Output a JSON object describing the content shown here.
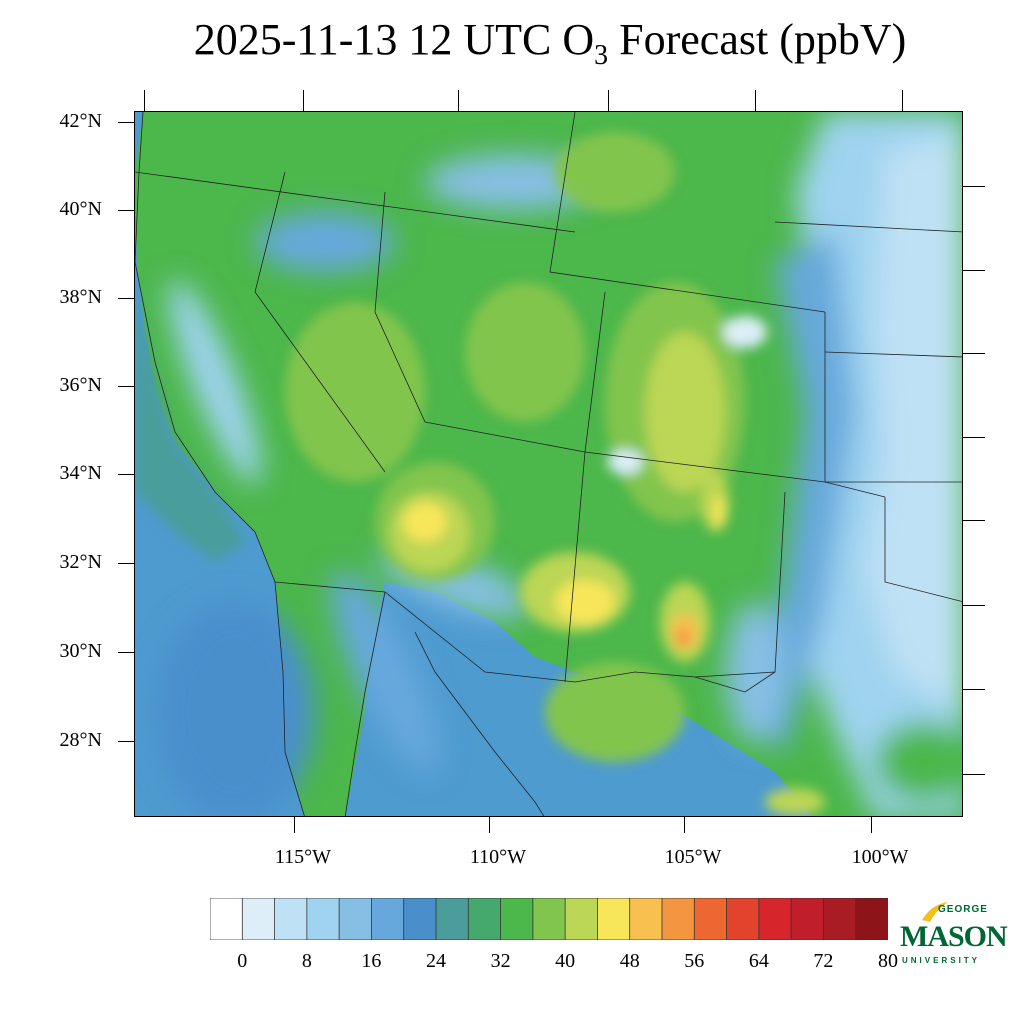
{
  "title": {
    "prefix": "2025-11-13 12 UTC O",
    "subscript": "3",
    "suffix": " Forecast (ppbV)"
  },
  "map": {
    "lat_labels": [
      "42°N",
      "40°N",
      "38°N",
      "36°N",
      "34°N",
      "32°N",
      "30°N",
      "28°N"
    ],
    "lon_labels": [
      "115°W",
      "110°W",
      "105°W",
      "100°W"
    ]
  },
  "colorbar": {
    "colors": [
      "#ffffff",
      "#ddeef9",
      "#bfe1f5",
      "#9fd3f0",
      "#86bfe4",
      "#66a8dc",
      "#4a8fcc",
      "#4a9d9b",
      "#45a96d",
      "#4cb74b",
      "#82c54e",
      "#bcd655",
      "#f7e65a",
      "#f8c04f",
      "#f49540",
      "#ef6730",
      "#e3422d",
      "#d6252b",
      "#c01e2a",
      "#a91c24",
      "#8d1519"
    ],
    "labels": [
      "0",
      "8",
      "16",
      "24",
      "32",
      "40",
      "48",
      "56",
      "64",
      "72",
      "80"
    ]
  },
  "logo": {
    "george": "GEORGE",
    "mason": "MASON",
    "university": "UNIVERSITY",
    "green": "#006633",
    "gold": "#f0c020"
  }
}
